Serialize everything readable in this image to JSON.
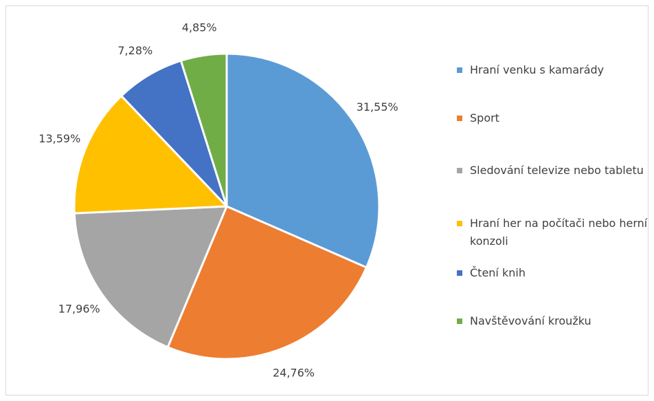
{
  "chart_data": {
    "type": "pie",
    "title": "",
    "slices": [
      {
        "label": "Hraní venku s kamarády",
        "value": 31.55,
        "value_label": "31,55%",
        "color": "#5b9bd5"
      },
      {
        "label": "Sport",
        "value": 24.76,
        "value_label": "24,76%",
        "color": "#ed7d31"
      },
      {
        "label": "Sledování televize nebo tabletu",
        "value": 17.96,
        "value_label": "17,96%",
        "color": "#a5a5a5"
      },
      {
        "label": "Hraní her na počítači nebo herní konzoli",
        "value": 13.59,
        "value_label": "13,59%",
        "color": "#ffc000"
      },
      {
        "label": "Čtení knih",
        "value": 7.28,
        "value_label": "7,28%",
        "color": "#4472c4"
      },
      {
        "label": "Navštěvování kroužku",
        "value": 4.85,
        "value_label": "4,85%",
        "color": "#70ad47"
      }
    ],
    "legend_position": "right"
  },
  "legend": {
    "items": [
      {
        "label": "Hraní venku s kamarády"
      },
      {
        "label": "Sport"
      },
      {
        "label": "Sledování televize nebo tabletu"
      },
      {
        "label": "Hraní her na počítači nebo herní konzoli"
      },
      {
        "label": "Čtení knih"
      },
      {
        "label": "Navštěvování kroužku"
      }
    ]
  }
}
